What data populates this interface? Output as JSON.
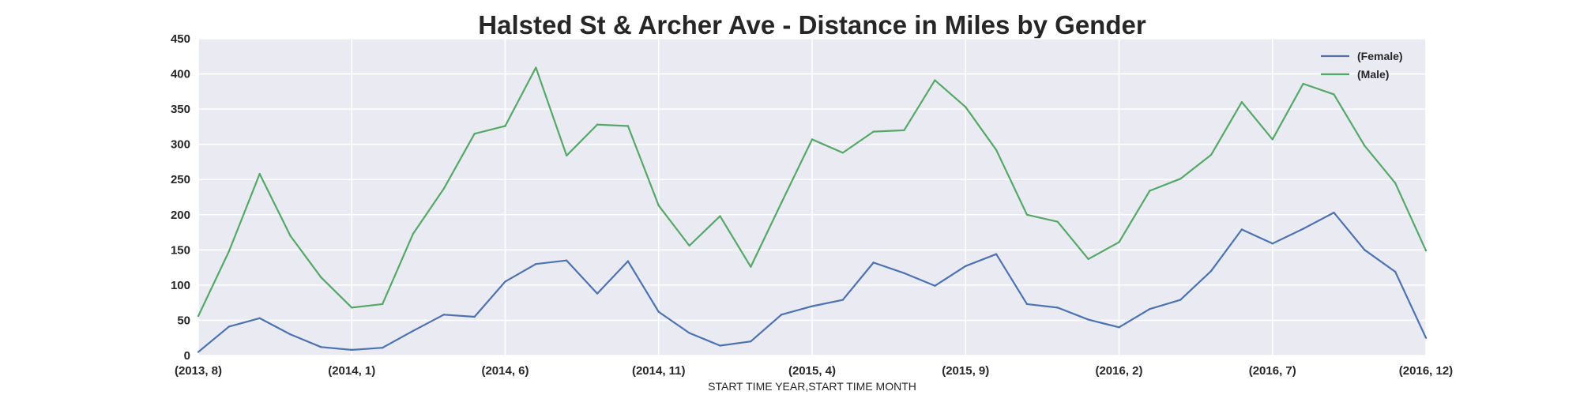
{
  "chart_data": {
    "type": "line",
    "title": "Halsted St & Archer Ave - Distance in Miles by Gender",
    "xlabel": "START TIME YEAR,START TIME MONTH",
    "ylabel": "",
    "ylim": [
      0,
      450
    ],
    "yticks": [
      0,
      50,
      100,
      150,
      200,
      250,
      300,
      350,
      400,
      450
    ],
    "x_tick_labels": [
      "(2013, 8)",
      "(2014, 1)",
      "(2014, 6)",
      "(2014, 11)",
      "(2015, 4)",
      "(2015, 9)",
      "(2016, 2)",
      "(2016, 7)",
      "(2016, 12)"
    ],
    "x": [
      "(2013, 8)",
      "(2013, 9)",
      "(2013, 10)",
      "(2013, 11)",
      "(2013, 12)",
      "(2014, 1)",
      "(2014, 2)",
      "(2014, 3)",
      "(2014, 4)",
      "(2014, 5)",
      "(2014, 6)",
      "(2014, 7)",
      "(2014, 8)",
      "(2014, 9)",
      "(2014, 10)",
      "(2014, 11)",
      "(2014, 12)",
      "(2015, 1)",
      "(2015, 2)",
      "(2015, 3)",
      "(2015, 4)",
      "(2015, 5)",
      "(2015, 6)",
      "(2015, 7)",
      "(2015, 8)",
      "(2015, 9)",
      "(2015, 10)",
      "(2015, 11)",
      "(2015, 12)",
      "(2016, 1)",
      "(2016, 2)",
      "(2016, 3)",
      "(2016, 4)",
      "(2016, 5)",
      "(2016, 6)",
      "(2016, 7)",
      "(2016, 8)",
      "(2016, 9)",
      "(2016, 10)",
      "(2016, 11)",
      "(2016, 12)"
    ],
    "series": [
      {
        "name": "(Female)",
        "color": "#4c72b0",
        "values": [
          5,
          41,
          53,
          30,
          12,
          8,
          11,
          35,
          58,
          55,
          105,
          130,
          135,
          88,
          134,
          62,
          32,
          14,
          20,
          58,
          70,
          79,
          132,
          117,
          99,
          127,
          144,
          73,
          68,
          51,
          40,
          66,
          79,
          120,
          179,
          159,
          180,
          203,
          150,
          119,
          25
        ]
      },
      {
        "name": "(Male)",
        "color": "#55a868",
        "values": [
          56,
          148,
          258,
          170,
          111,
          68,
          73,
          173,
          237,
          315,
          326,
          409,
          284,
          328,
          326,
          213,
          156,
          198,
          126,
          217,
          307,
          288,
          318,
          320,
          391,
          353,
          292,
          200,
          190,
          137,
          161,
          234,
          251,
          285,
          360,
          307,
          386,
          371,
          298,
          245,
          149
        ]
      }
    ],
    "grid": true,
    "legend_position": "top-right",
    "background_color": "#eaeaf2",
    "grid_color": "#ffffff"
  }
}
